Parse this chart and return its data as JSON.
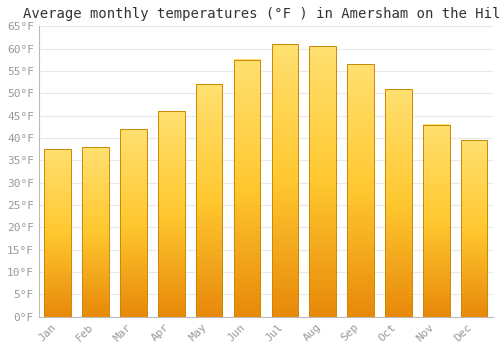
{
  "title": "Average monthly temperatures (°F ) in Amersham on the Hill",
  "months": [
    "Jan",
    "Feb",
    "Mar",
    "Apr",
    "May",
    "Jun",
    "Jul",
    "Aug",
    "Sep",
    "Oct",
    "Nov",
    "Dec"
  ],
  "values": [
    37.5,
    38.0,
    42.0,
    46.0,
    52.0,
    57.5,
    61.0,
    60.5,
    56.5,
    51.0,
    43.0,
    39.5
  ],
  "bar_color_top": "#FFD966",
  "bar_color_mid": "#FFC125",
  "bar_color_bottom": "#FFA500",
  "bar_edge_color": "#CC8800",
  "ylim": [
    0,
    65
  ],
  "yticks": [
    0,
    5,
    10,
    15,
    20,
    25,
    30,
    35,
    40,
    45,
    50,
    55,
    60,
    65
  ],
  "background_color": "#FFFFFF",
  "grid_color": "#E8E8E8",
  "title_fontsize": 10,
  "tick_fontsize": 8,
  "tick_color": "#999999",
  "font_family": "monospace"
}
